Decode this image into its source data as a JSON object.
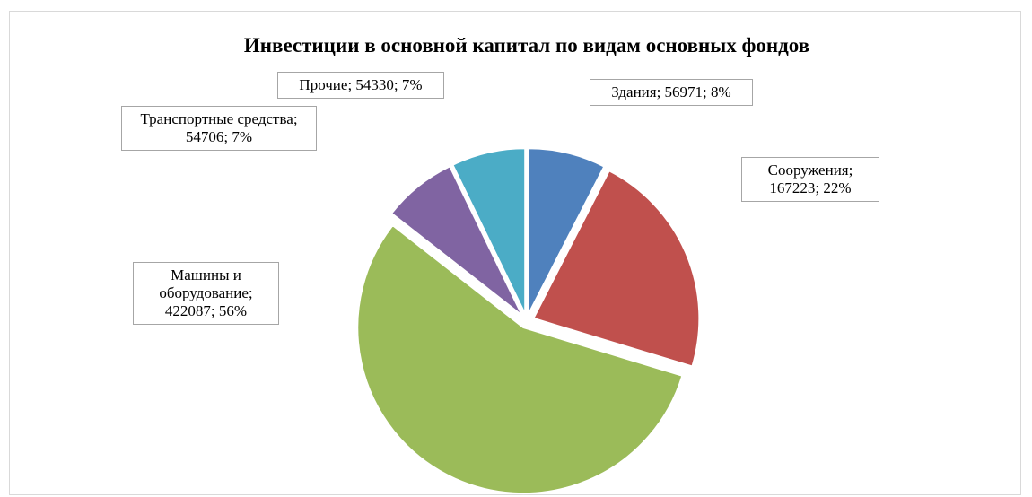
{
  "chart_data": {
    "type": "pie",
    "title": "Инвестиции в основной капитал по видам основных фондов",
    "values": [
      56971,
      167223,
      422087,
      54706,
      54330
    ],
    "value_labels": [
      "Здания; 56971; 8%",
      "Сооружения; 167223; 22%",
      "Машины и оборудование; 422087; 56%",
      "Транспортные средства; 54706; 7%",
      "Прочие; 54330; 7%"
    ],
    "colors": [
      "#4f81bd",
      "#c0504d",
      "#9bbb59",
      "#8064a2",
      "#4bacc6"
    ]
  }
}
